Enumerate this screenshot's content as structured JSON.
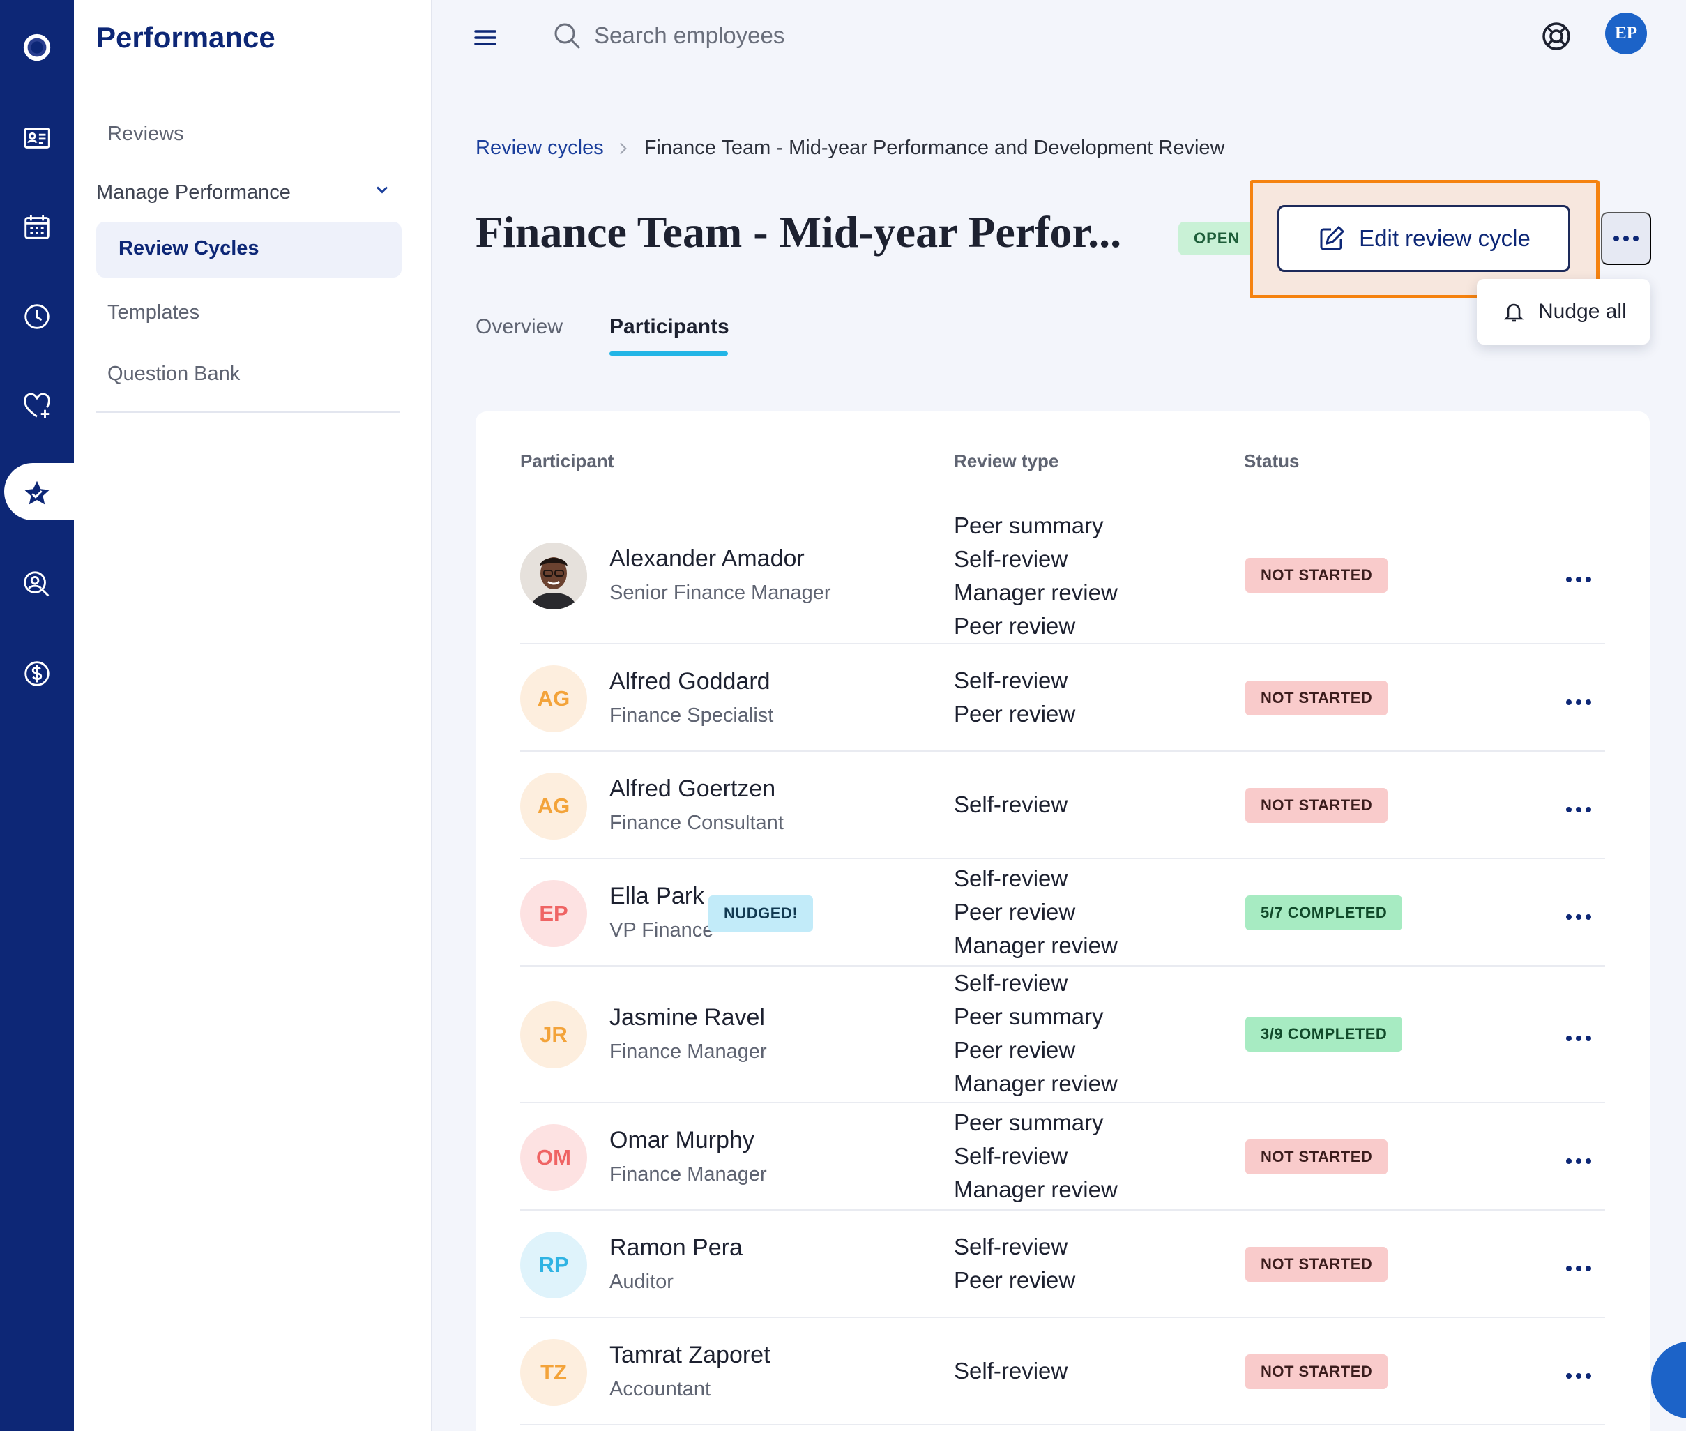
{
  "sidebar": {
    "title": "Performance",
    "reviews": "Reviews",
    "section": "Manage Performance",
    "review_cycles": "Review Cycles",
    "templates": "Templates",
    "question_bank": "Question Bank"
  },
  "topbar": {
    "search_placeholder": "Search employees",
    "avatar_initials": "EP"
  },
  "breadcrumb": {
    "root": "Review cycles",
    "current": "Finance Team - Mid-year Performance and Development Review"
  },
  "header": {
    "title": "Finance Team - Mid-year Perfor...",
    "status": "OPEN",
    "edit_label": "Edit review cycle",
    "nudge_label": "Nudge all"
  },
  "tabs": {
    "overview": "Overview",
    "participants": "Participants"
  },
  "table": {
    "col_participant": "Participant",
    "col_review_type": "Review type",
    "col_status": "Status",
    "rows": [
      {
        "initials": "",
        "name": "Alexander Amador",
        "role": "Senior Finance Manager",
        "types": [
          "Peer summary",
          "Self-review",
          "Manager review",
          "Peer review"
        ],
        "status": "NOT STARTED"
      },
      {
        "initials": "AG",
        "name": "Alfred Goddard",
        "role": "Finance Specialist",
        "types": [
          "Self-review",
          "Peer review"
        ],
        "status": "NOT STARTED"
      },
      {
        "initials": "AG",
        "name": "Alfred Goertzen",
        "role": "Finance Consultant",
        "types": [
          "Self-review"
        ],
        "status": "NOT STARTED"
      },
      {
        "initials": "EP",
        "name": "Ella Park",
        "role": "VP Finance",
        "badge": "NUDGED!",
        "types": [
          "Self-review",
          "Peer review",
          "Manager review"
        ],
        "status": "5/7 COMPLETED"
      },
      {
        "initials": "JR",
        "name": "Jasmine Ravel",
        "role": "Finance Manager",
        "types": [
          "Self-review",
          "Peer summary",
          "Peer review",
          "Manager review"
        ],
        "status": "3/9 COMPLETED"
      },
      {
        "initials": "OM",
        "name": "Omar Murphy",
        "role": "Finance Manager",
        "types": [
          "Peer summary",
          "Self-review",
          "Manager review"
        ],
        "status": "NOT STARTED"
      },
      {
        "initials": "RP",
        "name": "Ramon Pera",
        "role": "Auditor",
        "types": [
          "Self-review",
          "Peer review"
        ],
        "status": "NOT STARTED"
      },
      {
        "initials": "TZ",
        "name": "Tamrat Zaporet",
        "role": "Accountant",
        "types": [
          "Self-review"
        ],
        "status": "NOT STARTED"
      }
    ]
  },
  "icons": [
    "logo-icon",
    "id-card-icon",
    "calendar-icon",
    "clock-icon",
    "heart-plus-icon",
    "star-icon",
    "search-person-icon",
    "dollar-icon",
    "menu-icon",
    "search-icon",
    "help-icon",
    "edit-icon",
    "bell-icon",
    "more-icon",
    "chevron-down-icon"
  ],
  "colors": {
    "rail": "#0d2776",
    "accent": "#22b5e6",
    "highlight": "#f5820f",
    "not_started": "#f9cbcb",
    "completed": "#a7ebc2",
    "nudged": "#c2ebf9"
  }
}
